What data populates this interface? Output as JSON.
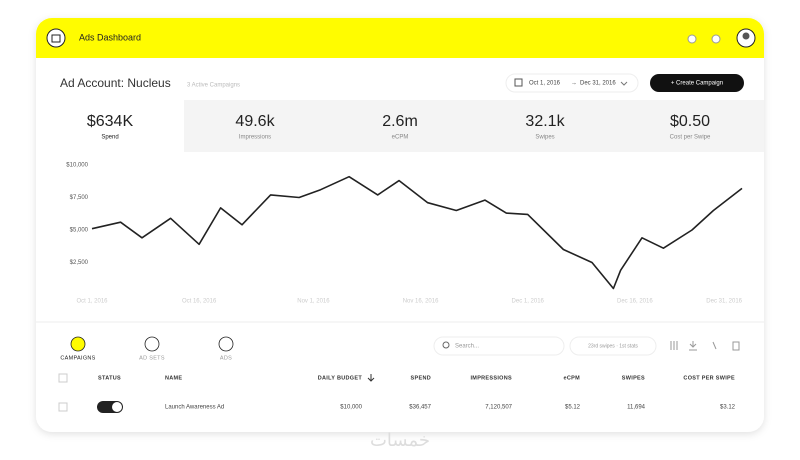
{
  "header": {
    "title": "Ads Dashboard"
  },
  "account": {
    "title": "Ad Account: Nucleus",
    "subtitle": "3 Active Campaigns",
    "date_from": "Oct 1, 2016",
    "date_to": "Dec 31, 2016",
    "button": "+ Create Campaign"
  },
  "metrics": [
    {
      "value": "$634K",
      "label": "Spend"
    },
    {
      "value": "49.6k",
      "label": "Impressions"
    },
    {
      "value": "2.6m",
      "label": "eCPM"
    },
    {
      "value": "32.1k",
      "label": "Swipes"
    },
    {
      "value": "$0.50",
      "label": "Cost per Swipe"
    }
  ],
  "chart_data": {
    "type": "line",
    "color": "#222222",
    "x": [
      "2016-10-01",
      "2016-10-05",
      "2016-10-08",
      "2016-10-12",
      "2016-10-16",
      "2016-10-19",
      "2016-10-22",
      "2016-10-26",
      "2016-10-30",
      "2016-11-02",
      "2016-11-06",
      "2016-11-10",
      "2016-11-13",
      "2016-11-17",
      "2016-11-21",
      "2016-11-25",
      "2016-11-28",
      "2016-12-01",
      "2016-12-06",
      "2016-12-10",
      "2016-12-13",
      "2016-12-14",
      "2016-12-17",
      "2016-12-20",
      "2016-12-24",
      "2016-12-27",
      "2016-12-31"
    ],
    "values": [
      5100,
      5600,
      4400,
      5900,
      3900,
      6700,
      5400,
      7700,
      7500,
      8100,
      9100,
      7700,
      8800,
      7100,
      6500,
      7300,
      6300,
      6200,
      3500,
      2500,
      500,
      1900,
      4400,
      3600,
      5000,
      6500,
      8200
    ],
    "xlim": [
      "2016-10-01",
      "2016-12-31"
    ],
    "xticks": [
      {
        "value": "2016-10-01",
        "label": "Oct 1, 2016"
      },
      {
        "value": "2016-10-16",
        "label": "Oct 16, 2016"
      },
      {
        "value": "2016-11-01",
        "label": "Nov 1, 2016"
      },
      {
        "value": "2016-11-16",
        "label": "Nov 16, 2016"
      },
      {
        "value": "2016-12-01",
        "label": "Dec 1, 2016"
      },
      {
        "value": "2016-12-16",
        "label": "Dec 16, 2016"
      },
      {
        "value": "2016-12-31",
        "label": "Dec 31, 2016"
      }
    ],
    "ylim": [
      0,
      10000
    ],
    "yticks": [
      {
        "value": 2500,
        "label": "$2,500"
      },
      {
        "value": 5000,
        "label": "$5,000"
      },
      {
        "value": 7500,
        "label": "$7,500"
      },
      {
        "value": 10000,
        "label": "$10,000"
      }
    ]
  },
  "tabs": [
    "CAMPAIGNS",
    "AD SETS",
    "ADS"
  ],
  "toolbar": {
    "search": "Search...",
    "filter": "23rd swipes · 1st stats"
  },
  "table": {
    "headers": [
      "STATUS",
      "NAME",
      "DAILY BUDGET",
      "SPEND",
      "IMPRESSIONS",
      "eCPM",
      "SWIPES",
      "COST PER SWIPE"
    ],
    "rows": [
      [
        "Launch Awareness Ad",
        "$10,000",
        "$36,457",
        "7,120,507",
        "$5.12",
        "11,694",
        "$3.12"
      ]
    ]
  },
  "watermark": "خمسات"
}
